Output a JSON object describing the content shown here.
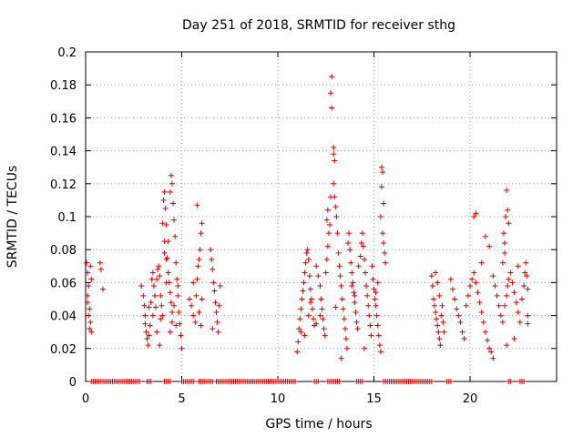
{
  "chart_data": {
    "type": "scatter",
    "title": "Day 251 of 2018, SRMTID for receiver sthg",
    "xlabel": "GPS time / hours",
    "ylabel": "SRMTID / TECUs",
    "xlim": [
      0,
      24.5
    ],
    "ylim": [
      0,
      0.2
    ],
    "xticks": [
      0,
      5,
      10,
      15,
      20
    ],
    "xtick_labels": [
      "0",
      "5",
      "10",
      "15",
      "20"
    ],
    "yticks": [
      0,
      0.02,
      0.04,
      0.06,
      0.08,
      0.1,
      0.12,
      0.14,
      0.16,
      0.18,
      0.2
    ],
    "ytick_labels": [
      "0",
      "0.02",
      "0.04",
      "0.06",
      "0.08",
      "0.1",
      "0.12",
      "0.14",
      "0.16",
      "0.18",
      "0.2"
    ],
    "grid": true,
    "marker": "+",
    "series_color": "#dd0000",
    "series": [
      {
        "name": "SRMTID",
        "points": [
          [
            0.05,
            0.072
          ],
          [
            0.1,
            0.066
          ],
          [
            0.15,
            0.058
          ],
          [
            0.1,
            0.048
          ],
          [
            0.2,
            0.044
          ],
          [
            0.15,
            0.04
          ],
          [
            0.25,
            0.036
          ],
          [
            0.2,
            0.032
          ],
          [
            0.3,
            0.03
          ],
          [
            0.1,
            0.052
          ],
          [
            0.25,
            0.07
          ],
          [
            0.3,
            0.062
          ],
          [
            0.75,
            0.072
          ],
          [
            0.8,
            0.068
          ],
          [
            0.9,
            0.056
          ],
          [
            2.9,
            0.058
          ],
          [
            3.0,
            0.052
          ],
          [
            3.05,
            0.046
          ],
          [
            3.1,
            0.04
          ],
          [
            3.1,
            0.035
          ],
          [
            3.15,
            0.03
          ],
          [
            3.2,
            0.026
          ],
          [
            3.25,
            0.022
          ],
          [
            3.3,
            0.028
          ],
          [
            3.35,
            0.034
          ],
          [
            3.4,
            0.048
          ],
          [
            3.45,
            0.062
          ],
          [
            3.5,
            0.066
          ],
          [
            3.55,
            0.058
          ],
          [
            3.6,
            0.052
          ],
          [
            3.65,
            0.045
          ],
          [
            3.7,
            0.062
          ],
          [
            3.75,
            0.068
          ],
          [
            3.8,
            0.07
          ],
          [
            3.85,
            0.064
          ],
          [
            3.9,
            0.052
          ],
          [
            3.95,
            0.046
          ],
          [
            4.0,
            0.04
          ],
          [
            4.05,
            0.11
          ],
          [
            4.1,
            0.115
          ],
          [
            4.15,
            0.105
          ],
          [
            4.2,
            0.095
          ],
          [
            4.1,
            0.085
          ],
          [
            4.2,
            0.074
          ],
          [
            4.3,
            0.066
          ],
          [
            4.35,
            0.06
          ],
          [
            4.4,
            0.054
          ],
          [
            4.45,
            0.048
          ],
          [
            4.5,
            0.042
          ],
          [
            4.5,
            0.036
          ],
          [
            4.4,
            0.03
          ],
          [
            3.9,
            0.038
          ],
          [
            3.85,
            0.022
          ],
          [
            3.7,
            0.03
          ],
          [
            3.5,
            0.04
          ],
          [
            3.3,
            0.045
          ],
          [
            4.0,
            0.096
          ],
          [
            4.1,
            0.078
          ],
          [
            4.2,
            0.06
          ],
          [
            4.25,
            0.075
          ],
          [
            4.3,
            0.085
          ],
          [
            4.4,
            0.115
          ],
          [
            4.45,
            0.125
          ],
          [
            4.5,
            0.12
          ],
          [
            4.55,
            0.108
          ],
          [
            4.6,
            0.098
          ],
          [
            4.65,
            0.088
          ],
          [
            4.7,
            0.072
          ],
          [
            4.75,
            0.062
          ],
          [
            4.8,
            0.052
          ],
          [
            4.85,
            0.042
          ],
          [
            4.9,
            0.035
          ],
          [
            4.95,
            0.028
          ],
          [
            5.0,
            0.02
          ],
          [
            4.7,
            0.034
          ],
          [
            4.6,
            0.046
          ],
          [
            4.8,
            0.058
          ],
          [
            5.4,
            0.05
          ],
          [
            5.5,
            0.046
          ],
          [
            5.6,
            0.04
          ],
          [
            5.7,
            0.036
          ],
          [
            5.75,
            0.052
          ],
          [
            5.8,
            0.062
          ],
          [
            5.85,
            0.07
          ],
          [
            5.9,
            0.074
          ],
          [
            5.95,
            0.08
          ],
          [
            6.0,
            0.09
          ],
          [
            6.05,
            0.096
          ],
          [
            5.8,
            0.107
          ],
          [
            5.6,
            0.06
          ],
          [
            5.9,
            0.042
          ],
          [
            6.0,
            0.034
          ],
          [
            6.05,
            0.05
          ],
          [
            6.5,
            0.08
          ],
          [
            6.55,
            0.074
          ],
          [
            6.6,
            0.068
          ],
          [
            6.65,
            0.06
          ],
          [
            6.7,
            0.055
          ],
          [
            6.75,
            0.048
          ],
          [
            6.8,
            0.042
          ],
          [
            6.85,
            0.036
          ],
          [
            6.9,
            0.03
          ],
          [
            6.95,
            0.046
          ],
          [
            7.0,
            0.058
          ],
          [
            6.6,
            0.032
          ],
          [
            11.0,
            0.018
          ],
          [
            11.05,
            0.024
          ],
          [
            11.1,
            0.032
          ],
          [
            11.15,
            0.038
          ],
          [
            11.2,
            0.044
          ],
          [
            11.25,
            0.05
          ],
          [
            11.3,
            0.055
          ],
          [
            11.35,
            0.06
          ],
          [
            11.4,
            0.066
          ],
          [
            11.45,
            0.072
          ],
          [
            11.5,
            0.078
          ],
          [
            11.55,
            0.08
          ],
          [
            11.6,
            0.074
          ],
          [
            11.65,
            0.064
          ],
          [
            11.7,
            0.056
          ],
          [
            11.75,
            0.05
          ],
          [
            11.8,
            0.044
          ],
          [
            11.85,
            0.038
          ],
          [
            11.9,
            0.034
          ],
          [
            11.2,
            0.03
          ],
          [
            11.4,
            0.028
          ],
          [
            11.6,
            0.04
          ],
          [
            11.7,
            0.048
          ],
          [
            12.0,
            0.07
          ],
          [
            12.1,
            0.064
          ],
          [
            12.2,
            0.058
          ],
          [
            12.25,
            0.05
          ],
          [
            12.3,
            0.044
          ],
          [
            12.35,
            0.038
          ],
          [
            12.4,
            0.032
          ],
          [
            12.45,
            0.028
          ],
          [
            12.5,
            0.066
          ],
          [
            12.55,
            0.074
          ],
          [
            12.6,
            0.082
          ],
          [
            12.65,
            0.09
          ],
          [
            12.7,
            0.095
          ],
          [
            12.75,
            0.112
          ],
          [
            12.8,
            0.185
          ],
          [
            12.75,
            0.175
          ],
          [
            12.8,
            0.166
          ],
          [
            12.9,
            0.142
          ],
          [
            12.9,
            0.138
          ],
          [
            12.95,
            0.134
          ],
          [
            12.9,
            0.12
          ],
          [
            12.95,
            0.112
          ],
          [
            12.6,
            0.104
          ],
          [
            12.55,
            0.098
          ],
          [
            13.0,
            0.106
          ],
          [
            13.05,
            0.1
          ],
          [
            13.1,
            0.09
          ],
          [
            13.15,
            0.078
          ],
          [
            13.2,
            0.07
          ],
          [
            13.25,
            0.064
          ],
          [
            13.3,
            0.058
          ],
          [
            13.35,
            0.05
          ],
          [
            13.4,
            0.044
          ],
          [
            13.45,
            0.038
          ],
          [
            13.5,
            0.032
          ],
          [
            13.55,
            0.026
          ],
          [
            13.6,
            0.02
          ],
          [
            13.3,
            0.014
          ],
          [
            13.65,
            0.084
          ],
          [
            13.7,
            0.09
          ],
          [
            13.75,
            0.08
          ],
          [
            13.8,
            0.072
          ],
          [
            13.85,
            0.066
          ],
          [
            13.9,
            0.06
          ],
          [
            13.95,
            0.054
          ],
          [
            14.0,
            0.048
          ],
          [
            14.05,
            0.042
          ],
          [
            14.1,
            0.036
          ],
          [
            14.15,
            0.032
          ],
          [
            14.2,
            0.07
          ],
          [
            14.3,
            0.076
          ],
          [
            14.35,
            0.084
          ],
          [
            14.4,
            0.09
          ],
          [
            14.45,
            0.082
          ],
          [
            14.5,
            0.074
          ],
          [
            14.55,
            0.066
          ],
          [
            14.6,
            0.058
          ],
          [
            14.65,
            0.052
          ],
          [
            14.7,
            0.046
          ],
          [
            14.75,
            0.04
          ],
          [
            14.8,
            0.034
          ],
          [
            14.85,
            0.028
          ],
          [
            14.5,
            0.02
          ],
          [
            14.9,
            0.07
          ],
          [
            14.95,
            0.062
          ],
          [
            15.0,
            0.056
          ],
          [
            15.05,
            0.05
          ],
          [
            15.1,
            0.046
          ],
          [
            15.15,
            0.04
          ],
          [
            15.2,
            0.034
          ],
          [
            15.25,
            0.028
          ],
          [
            15.3,
            0.022
          ],
          [
            15.35,
            0.018
          ],
          [
            15.4,
            0.13
          ],
          [
            15.45,
            0.127
          ],
          [
            15.4,
            0.118
          ],
          [
            15.5,
            0.108
          ],
          [
            15.35,
            0.1
          ],
          [
            15.45,
            0.09
          ],
          [
            15.5,
            0.084
          ],
          [
            15.55,
            0.078
          ],
          [
            15.6,
            0.072
          ],
          [
            15.2,
            0.06
          ],
          [
            15.1,
            0.054
          ],
          [
            14.0,
            0.052
          ],
          [
            13.85,
            0.058
          ],
          [
            13.0,
            0.045
          ],
          [
            12.2,
            0.04
          ],
          [
            12.0,
            0.035
          ],
          [
            18.0,
            0.064
          ],
          [
            18.05,
            0.058
          ],
          [
            18.1,
            0.05
          ],
          [
            18.15,
            0.046
          ],
          [
            18.2,
            0.042
          ],
          [
            18.25,
            0.038
          ],
          [
            18.3,
            0.034
          ],
          [
            18.35,
            0.03
          ],
          [
            18.4,
            0.026
          ],
          [
            18.45,
            0.022
          ],
          [
            18.5,
            0.04
          ],
          [
            18.55,
            0.046
          ],
          [
            18.6,
            0.036
          ],
          [
            18.65,
            0.03
          ],
          [
            18.2,
            0.066
          ],
          [
            18.3,
            0.06
          ],
          [
            18.4,
            0.052
          ],
          [
            19.0,
            0.062
          ],
          [
            19.1,
            0.056
          ],
          [
            19.2,
            0.05
          ],
          [
            19.3,
            0.044
          ],
          [
            19.4,
            0.04
          ],
          [
            19.5,
            0.036
          ],
          [
            19.6,
            0.03
          ],
          [
            19.7,
            0.026
          ],
          [
            19.8,
            0.046
          ],
          [
            19.9,
            0.052
          ],
          [
            20.0,
            0.058
          ],
          [
            20.1,
            0.062
          ],
          [
            20.2,
            0.066
          ],
          [
            20.3,
            0.06
          ],
          [
            20.4,
            0.054
          ],
          [
            20.5,
            0.048
          ],
          [
            20.6,
            0.042
          ],
          [
            20.7,
            0.036
          ],
          [
            20.8,
            0.03
          ],
          [
            20.9,
            0.025
          ],
          [
            21.0,
            0.02
          ],
          [
            21.1,
            0.018
          ],
          [
            21.2,
            0.014
          ],
          [
            20.2,
            0.1
          ],
          [
            20.3,
            0.102
          ],
          [
            20.6,
            0.072
          ],
          [
            20.8,
            0.088
          ],
          [
            21.0,
            0.082
          ],
          [
            21.2,
            0.064
          ],
          [
            21.3,
            0.058
          ],
          [
            21.4,
            0.052
          ],
          [
            21.5,
            0.046
          ],
          [
            21.6,
            0.04
          ],
          [
            21.7,
            0.036
          ],
          [
            21.8,
            0.046
          ],
          [
            21.9,
            0.052
          ],
          [
            21.95,
            0.058
          ],
          [
            22.0,
            0.062
          ],
          [
            21.75,
            0.09
          ],
          [
            21.8,
            0.084
          ],
          [
            21.85,
            0.1
          ],
          [
            21.9,
            0.116
          ],
          [
            21.95,
            0.104
          ],
          [
            22.0,
            0.096
          ],
          [
            21.8,
            0.078
          ],
          [
            21.7,
            0.072
          ],
          [
            22.1,
            0.066
          ],
          [
            22.2,
            0.06
          ],
          [
            22.3,
            0.054
          ],
          [
            22.4,
            0.048
          ],
          [
            22.5,
            0.042
          ],
          [
            22.6,
            0.036
          ],
          [
            22.7,
            0.05
          ],
          [
            22.8,
            0.058
          ],
          [
            22.85,
            0.066
          ],
          [
            22.9,
            0.072
          ],
          [
            22.95,
            0.064
          ],
          [
            23.0,
            0.056
          ],
          [
            22.3,
            0.026
          ],
          [
            21.9,
            0.022
          ],
          [
            22.5,
            0.07
          ],
          [
            23.0,
            0.04
          ],
          [
            23.0,
            0.035
          ]
        ]
      },
      {
        "name": "zero-values",
        "ranges": [
          [
            0.3,
            2.8
          ],
          [
            3.2,
            3.4
          ],
          [
            4.1,
            4.4
          ],
          [
            5.0,
            5.6
          ],
          [
            5.9,
            6.6
          ],
          [
            6.8,
            10.9
          ],
          [
            11.9,
            12.1
          ],
          [
            12.6,
            12.9
          ],
          [
            13.0,
            13.2
          ],
          [
            14.1,
            14.4
          ],
          [
            15.5,
            18.0
          ],
          [
            18.8,
            19.0
          ],
          [
            22.0,
            22.1
          ],
          [
            22.6,
            22.8
          ]
        ]
      }
    ]
  }
}
